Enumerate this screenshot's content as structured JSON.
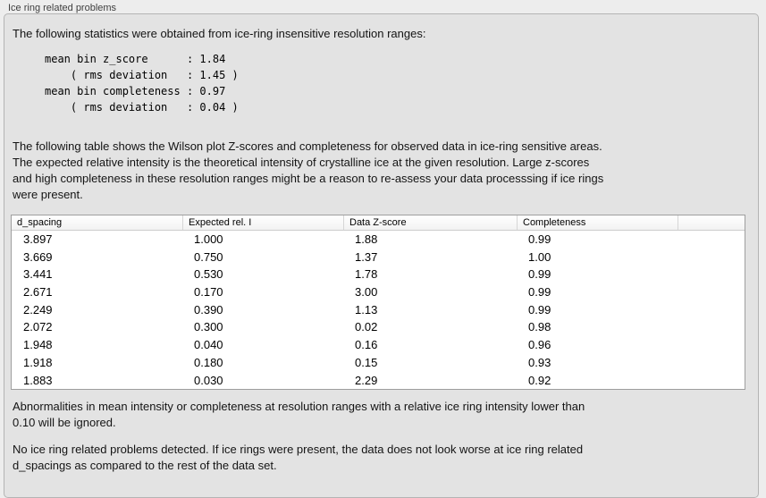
{
  "panel": {
    "title": "Ice ring related problems"
  },
  "intro": "The following statistics were obtained from ice-ring insensitive resolution ranges:",
  "stats": {
    "lines": [
      "mean bin z_score      : 1.84",
      "    ( rms deviation   : 1.45 )",
      "mean bin completeness : 0.97",
      "    ( rms deviation   : 0.04 )"
    ]
  },
  "description": {
    "lines": [
      "The following table shows the Wilson plot Z-scores and completeness for observed data in ice-ring sensitive areas.",
      "The expected relative intensity is the theoretical intensity of crystalline ice at the given resolution. Large z-scores",
      "and high completeness in these resolution ranges might be a reason to re-assess your data processsing if ice rings",
      "were present."
    ]
  },
  "table": {
    "columns": [
      "d_spacing",
      "Expected rel. I",
      "Data Z-score",
      "Completeness"
    ],
    "rows": [
      [
        "3.897",
        "1.000",
        "1.88",
        "0.99"
      ],
      [
        "3.669",
        "0.750",
        "1.37",
        "1.00"
      ],
      [
        "3.441",
        "0.530",
        "1.78",
        "0.99"
      ],
      [
        "2.671",
        "0.170",
        "3.00",
        "0.99"
      ],
      [
        "2.249",
        "0.390",
        "1.13",
        "0.99"
      ],
      [
        "2.072",
        "0.300",
        "0.02",
        "0.98"
      ],
      [
        "1.948",
        "0.040",
        "0.16",
        "0.96"
      ],
      [
        "1.918",
        "0.180",
        "0.15",
        "0.93"
      ],
      [
        "1.883",
        "0.030",
        "2.29",
        "0.92"
      ]
    ]
  },
  "note": {
    "lines": [
      "Abnormalities in mean intensity or completeness at resolution ranges with a relative ice ring intensity lower than",
      "0.10 will be ignored."
    ]
  },
  "conclusion": {
    "lines": [
      "No ice ring related problems detected. If ice rings were present, the data does not look worse at ice ring related",
      "d_spacings as compared to the rest of the data set."
    ]
  }
}
